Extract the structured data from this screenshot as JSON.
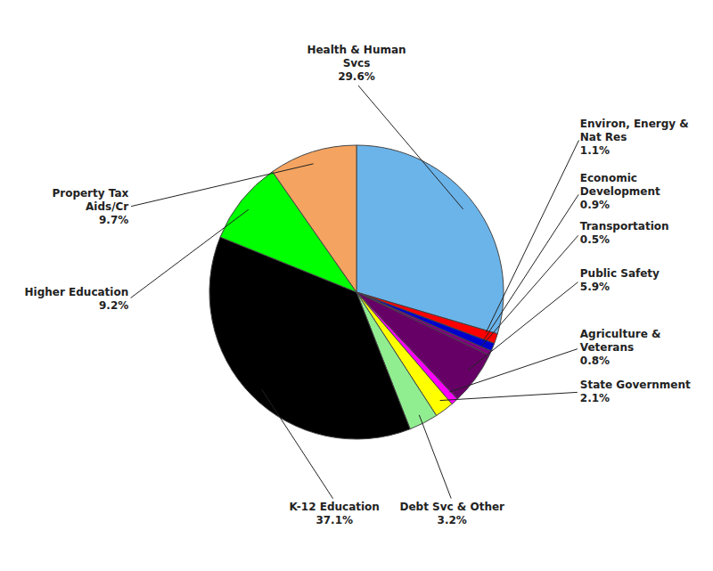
{
  "chart_data": {
    "type": "pie",
    "categories": [
      "Health & Human\nSvcs",
      "Environ, Energy &\nNat Res",
      "Economic\nDevelopment",
      "Transportation",
      "Public Safety",
      "Agriculture &\nVeterans",
      "State Government",
      "Debt Svc & Other",
      "K-12 Education",
      "Higher Education",
      "Property Tax\nAids/Cr"
    ],
    "values": [
      29.6,
      1.1,
      0.9,
      0.5,
      5.9,
      0.8,
      2.1,
      3.2,
      37.1,
      9.2,
      9.7
    ],
    "value_labels": [
      "29.6%",
      "1.1%",
      "0.9%",
      "0.5%",
      "5.9%",
      "0.8%",
      "2.1%",
      "3.2%",
      "37.1%",
      "9.2%",
      "9.7%"
    ],
    "colors": [
      "#6BB4EA",
      "#FF0000",
      "#0000CD",
      "#800080",
      "#660066",
      "#FF00FF",
      "#FFFF00",
      "#90EE90",
      "#000000",
      "#00FF00",
      "#F4A460"
    ],
    "data_labels": true
  }
}
